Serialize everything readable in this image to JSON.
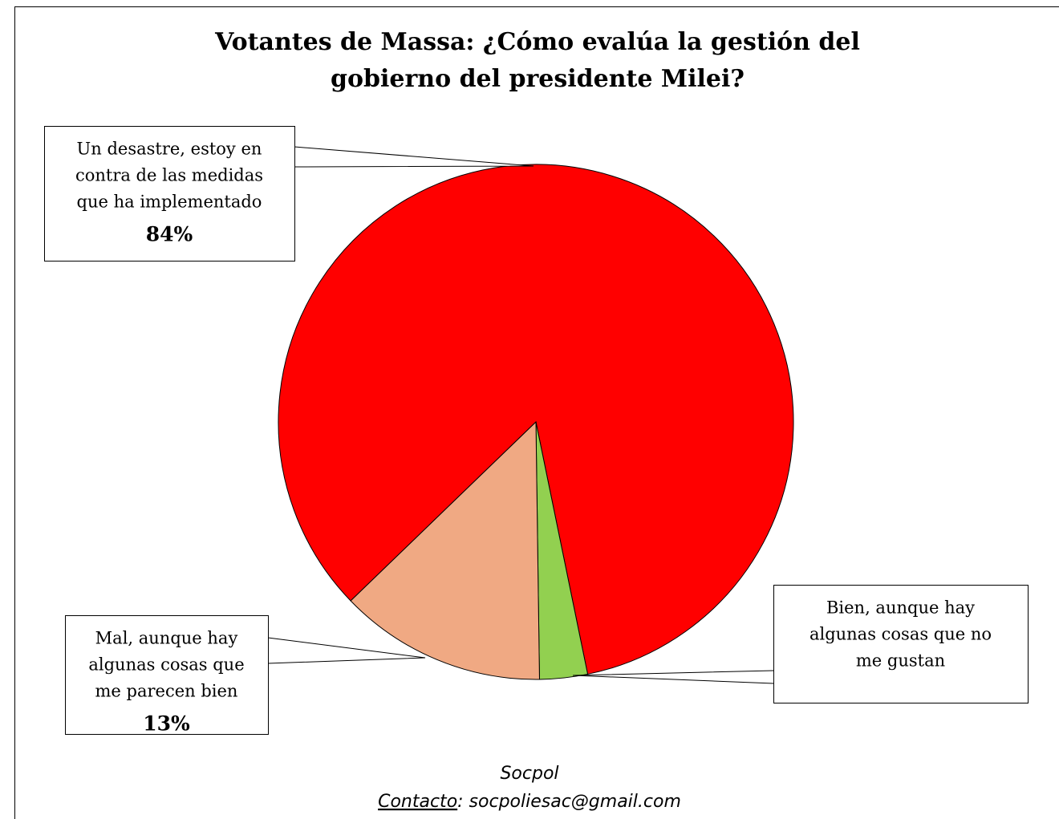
{
  "chart_data": {
    "type": "pie",
    "title": [
      "Votantes de Massa: ¿Cómo evalúa la gestión del",
      "gobierno del presidente Milei?"
    ],
    "categories": [
      [
        "Un desastre, estoy en",
        "contra de las medidas",
        "que ha implementado"
      ],
      [
        "Bien, aunque hay",
        "algunas cosas que no",
        "me gustan"
      ],
      [
        "Mal, aunque hay",
        "algunas cosas que",
        "me parecen bien"
      ]
    ],
    "values": [
      84,
      3,
      13
    ],
    "value_labels": [
      "84%",
      null,
      "13%"
    ],
    "colors": [
      "#ff0000",
      "#92d050",
      "#f0a983"
    ],
    "source": "Socpol",
    "contact_label": "Contacto",
    "contact_text": ": socpoliesac@gmail.com"
  }
}
